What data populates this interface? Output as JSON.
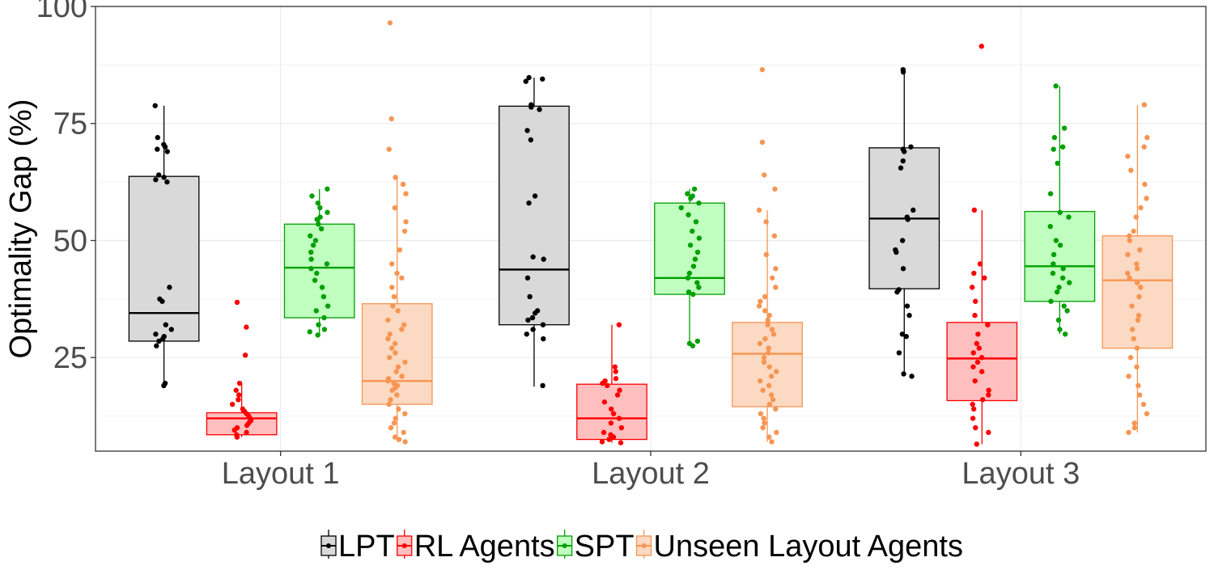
{
  "chart_data": {
    "type": "boxplot",
    "xlabel": "",
    "ylabel": "Optimality Gap (%)",
    "ylim": [
      5,
      100
    ],
    "yticks": [
      25,
      50,
      75,
      100
    ],
    "grid": true,
    "legend_position": "bottom",
    "categories": [
      "Layout 1",
      "Layout 2",
      "Layout 3"
    ],
    "series": [
      {
        "name": "LPT",
        "color": "#000000",
        "fill": "#d9d9d9",
        "boxes": [
          {
            "lower_whisker": 18.5,
            "q1": 28.5,
            "median": 34.5,
            "q3": 63.7,
            "upper_whisker": 78.8
          },
          {
            "lower_whisker": 18.8,
            "q1": 32.0,
            "median": 43.8,
            "q3": 78.7,
            "upper_whisker": 84.8
          },
          {
            "lower_whisker": 21.0,
            "q1": 39.7,
            "median": 54.7,
            "q3": 69.8,
            "upper_whisker": 86.5
          }
        ],
        "points": [
          [
            19.0,
            19.5,
            27.5,
            28.5,
            29.0,
            29.5,
            30.0,
            31.0,
            32.0,
            37.0,
            37.5,
            40.0,
            62.5,
            63.0,
            63.5,
            64.0,
            69.0,
            69.5,
            70.0,
            70.5,
            72.0,
            78.8
          ],
          [
            19.0,
            29.0,
            30.0,
            31.0,
            32.0,
            33.0,
            33.5,
            34.5,
            35.0,
            38.0,
            42.0,
            46.0,
            46.5,
            58.0,
            59.5,
            71.5,
            73.5,
            78.0,
            78.5,
            79.0,
            84.0,
            84.5,
            84.8
          ],
          [
            21.0,
            21.5,
            26.0,
            29.5,
            30.0,
            34.0,
            36.0,
            39.0,
            39.5,
            44.0,
            47.5,
            48.0,
            50.0,
            54.5,
            55.0,
            56.5,
            65.5,
            67.0,
            69.0,
            69.5,
            70.0,
            86.0,
            86.5
          ]
        ]
      },
      {
        "name": "RL Agents",
        "color": "#ff0000",
        "fill": "#ffbfbf",
        "boxes": [
          {
            "lower_whisker": 8.0,
            "q1": 8.5,
            "median": 12.0,
            "q3": 13.2,
            "upper_whisker": 19.5
          },
          {
            "lower_whisker": 6.8,
            "q1": 7.5,
            "median": 12.0,
            "q3": 19.3,
            "upper_whisker": 32.0
          },
          {
            "lower_whisker": 6.5,
            "q1": 15.8,
            "median": 24.8,
            "q3": 32.5,
            "upper_whisker": 56.5
          }
        ],
        "points": [
          [
            8.0,
            8.5,
            9.0,
            9.5,
            10.0,
            10.5,
            11.0,
            11.5,
            12.0,
            12.5,
            13.0,
            13.5,
            14.0,
            15.0,
            16.0,
            17.0,
            18.0,
            19.5,
            25.5,
            31.5,
            36.8
          ],
          [
            6.8,
            7.0,
            7.5,
            8.0,
            8.5,
            9.0,
            10.0,
            11.0,
            12.0,
            13.0,
            14.0,
            15.5,
            17.0,
            18.0,
            19.0,
            19.5,
            20.0,
            20.5,
            22.0,
            23.0,
            32.0
          ],
          [
            6.5,
            9.0,
            10.0,
            12.0,
            14.0,
            15.0,
            16.0,
            17.0,
            18.0,
            20.0,
            22.0,
            23.0,
            24.0,
            25.0,
            26.0,
            27.0,
            28.0,
            30.0,
            32.0,
            34.0,
            37.0,
            40.0,
            42.0,
            43.0,
            45.0,
            56.5,
            91.5
          ]
        ]
      },
      {
        "name": "SPT",
        "color": "#00a000",
        "fill": "#c0ffc0",
        "boxes": [
          {
            "lower_whisker": 29.8,
            "q1": 33.5,
            "median": 44.2,
            "q3": 53.5,
            "upper_whisker": 61.0
          },
          {
            "lower_whisker": 27.5,
            "q1": 38.5,
            "median": 42.0,
            "q3": 58.0,
            "upper_whisker": 61.0
          },
          {
            "lower_whisker": 30.0,
            "q1": 37.0,
            "median": 44.5,
            "q3": 56.2,
            "upper_whisker": 83.0
          }
        ],
        "points": [
          [
            29.8,
            30.5,
            31.0,
            32.0,
            33.5,
            35.0,
            36.0,
            38.0,
            40.0,
            41.5,
            43.0,
            44.0,
            45.0,
            46.0,
            47.5,
            49.0,
            50.0,
            51.0,
            52.5,
            53.5,
            54.5,
            55.0,
            56.0,
            57.0,
            58.0,
            59.5,
            61.0
          ],
          [
            27.5,
            28.0,
            28.5,
            38.5,
            39.0,
            40.0,
            41.0,
            42.0,
            43.0,
            44.5,
            46.0,
            47.5,
            49.0,
            50.5,
            52.0,
            54.0,
            55.5,
            57.0,
            58.0,
            59.0,
            59.5,
            60.0,
            61.0
          ],
          [
            30.0,
            31.0,
            33.0,
            35.0,
            36.0,
            37.0,
            39.0,
            40.0,
            41.0,
            42.0,
            43.0,
            44.0,
            45.0,
            47.0,
            49.0,
            50.0,
            53.0,
            55.0,
            56.0,
            60.0,
            66.5,
            69.5,
            70.0,
            72.0,
            74.0,
            83.0
          ]
        ]
      },
      {
        "name": "Unseen Layout Agents",
        "color": "#f79552",
        "fill": "#fcd9c2",
        "boxes": [
          {
            "lower_whisker": 7.0,
            "q1": 15.0,
            "median": 20.0,
            "q3": 36.5,
            "upper_whisker": 63.5
          },
          {
            "lower_whisker": 7.0,
            "q1": 14.5,
            "median": 25.8,
            "q3": 32.5,
            "upper_whisker": 56.5
          },
          {
            "lower_whisker": 9.0,
            "q1": 27.0,
            "median": 41.5,
            "q3": 51.0,
            "upper_whisker": 79.0
          }
        ],
        "points": [
          [
            7.0,
            7.5,
            8.0,
            9.0,
            10.0,
            11.0,
            12.0,
            13.0,
            14.0,
            15.0,
            16.0,
            17.0,
            18.0,
            18.5,
            19.0,
            19.5,
            20.0,
            20.5,
            21.0,
            22.0,
            23.0,
            24.0,
            25.0,
            26.0,
            27.0,
            28.0,
            29.0,
            30.0,
            31.0,
            32.0,
            33.0,
            35.0,
            36.0,
            38.0,
            40.0,
            42.0,
            43.0,
            45.0,
            48.0,
            52.0,
            54.0,
            57.0,
            60.0,
            62.0,
            63.5,
            69.5,
            76.0,
            96.5
          ],
          [
            7.0,
            8.0,
            9.0,
            10.0,
            11.0,
            12.0,
            13.0,
            14.0,
            15.0,
            16.0,
            17.0,
            18.0,
            19.0,
            20.0,
            21.0,
            22.0,
            23.0,
            24.0,
            25.0,
            26.0,
            27.0,
            28.0,
            29.0,
            30.0,
            31.0,
            32.0,
            33.0,
            34.0,
            35.0,
            36.0,
            37.0,
            38.0,
            40.0,
            42.0,
            44.0,
            47.0,
            51.0,
            54.0,
            56.5,
            61.0,
            64.0,
            71.0,
            86.5
          ],
          [
            9.0,
            10.0,
            11.0,
            13.0,
            15.0,
            17.0,
            19.0,
            21.0,
            23.0,
            25.0,
            27.0,
            29.0,
            31.0,
            33.0,
            34.0,
            36.0,
            38.0,
            40.0,
            41.0,
            42.0,
            43.0,
            44.0,
            45.0,
            47.0,
            48.0,
            50.0,
            51.0,
            52.0,
            55.0,
            57.0,
            59.0,
            62.0,
            65.0,
            68.0,
            70.0,
            72.0,
            79.0
          ]
        ]
      }
    ]
  }
}
